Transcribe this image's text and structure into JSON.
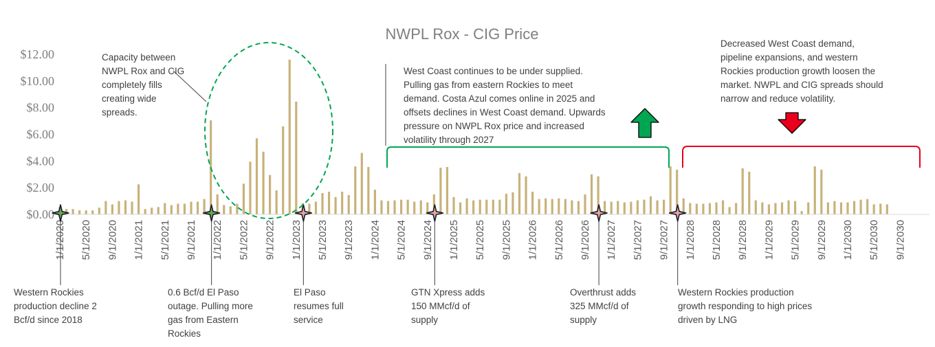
{
  "chart_data": {
    "type": "bar",
    "title": "NWPL Rox -  CIG Price",
    "xlabel": "",
    "ylabel": "",
    "ylim": [
      0,
      12
    ],
    "yticks": [
      "$0.00",
      "$2.00",
      "$4.00",
      "$6.00",
      "$8.00",
      "$10.00",
      "$12.00"
    ],
    "grid": false,
    "legend": "none",
    "bar_color": "#c8b27a",
    "start": "1/1/2020",
    "x_labels": [
      "1/1/2020",
      "5/1/2020",
      "9/1/2020",
      "1/1/2021",
      "5/1/2021",
      "9/1/2021",
      "1/1/2022",
      "5/1/2022",
      "9/1/2022",
      "1/1/2023",
      "5/1/2023",
      "9/1/2023",
      "1/1/2024",
      "5/1/2024",
      "9/1/2024",
      "1/1/2025",
      "5/1/2025",
      "9/1/2025",
      "1/1/2026",
      "5/1/2026",
      "9/1/2026",
      "1/1/2027",
      "5/1/2027",
      "9/1/2027",
      "1/1/2028",
      "5/1/2028",
      "9/1/2028",
      "1/1/2029",
      "5/1/2029",
      "9/1/2029",
      "1/1/2030",
      "5/1/2030",
      "9/1/2030"
    ],
    "values": [
      0.55,
      0.4,
      0.4,
      0.3,
      0.3,
      0.3,
      0.5,
      1.0,
      0.75,
      1.0,
      1.05,
      0.95,
      2.25,
      0.4,
      0.5,
      0.55,
      0.85,
      0.7,
      0.8,
      0.8,
      0.95,
      0.95,
      1.15,
      7.05,
      1.5,
      0.7,
      0.6,
      0.8,
      2.3,
      3.95,
      5.7,
      4.7,
      2.95,
      1.8,
      6.6,
      11.6,
      8.45,
      0.85,
      0.8,
      0.95,
      1.6,
      1.7,
      1.3,
      1.7,
      1.45,
      3.6,
      4.6,
      3.55,
      1.85,
      1.05,
      1.0,
      1.05,
      1.1,
      1.1,
      0.95,
      1.05,
      0.9,
      1.5,
      3.5,
      3.55,
      1.3,
      0.9,
      1.2,
      1.05,
      1.1,
      1.1,
      1.1,
      1.1,
      1.55,
      1.65,
      3.1,
      2.85,
      1.7,
      1.15,
      1.2,
      1.15,
      1.2,
      1.15,
      1.05,
      1.0,
      1.5,
      3.0,
      2.85,
      1.0,
      0.95,
      1.0,
      0.9,
      0.95,
      1.05,
      1.1,
      1.35,
      1.05,
      1.1,
      3.6,
      3.35,
      1.2,
      0.85,
      0.8,
      0.8,
      0.85,
      0.9,
      1.05,
      0.55,
      0.85,
      3.45,
      3.2,
      1.05,
      0.9,
      0.75,
      0.85,
      0.9,
      1.05,
      1.0,
      0.25,
      0.9,
      3.6,
      3.35,
      0.9,
      1.0,
      0.9,
      0.9,
      1.0,
      1.1,
      1.15,
      0.75,
      0.8,
      0.75
    ],
    "annotations": {
      "capacity": "Capacity between NWPL Rox and CIG completely fills creating wide spreads.",
      "west_coast": "West Coast continues to be under supplied. Pulling gas from eastern Rockies to meet demand. Costa Azul comes online in 2025 and offsets declines in West Coast demand. Upwards pressure on NWPL Rox price and increased volatility through 2027",
      "decreased": "Decreased West Coast demand, pipeline expansions, and western Rockies production growth loosen the market. NWPL and CIG spreads should narrow and reduce volatility.",
      "events": [
        {
          "month": 0,
          "text": "Western  Rockies production decline 2 Bcf/d since 2018",
          "color": "#6aa84f"
        },
        {
          "month": 23,
          "text": "0.6 Bcf/d El Paso outage. Pulling more gas from Eastern Rockies",
          "color": "#6aa84f"
        },
        {
          "month": 37,
          "text": "El Paso resumes full service",
          "color": "#e6a89a"
        },
        {
          "month": 57,
          "text": "GTN Xpress adds 150 MMcf/d of supply",
          "color": "#e6a89a"
        },
        {
          "month": 82,
          "text": "Overthrust adds 325 MMcf/d of supply",
          "color": "#e6a89a"
        },
        {
          "month": 94,
          "text": "Western Rockies production growth responding to high prices driven by LNG",
          "color": "#e6a89a"
        }
      ]
    },
    "trend_up_color": "#00a651",
    "trend_down_color": "#e8001c"
  }
}
